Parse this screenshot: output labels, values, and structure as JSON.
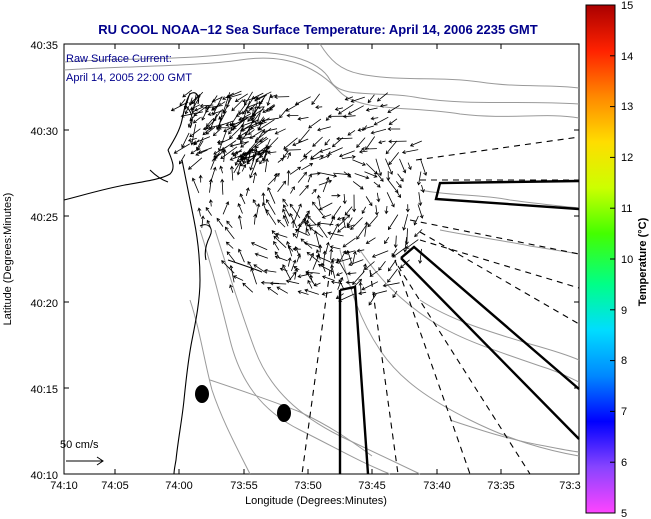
{
  "title": "RU COOL  NOAA−12  Sea Surface Temperature:  April 14, 2006 2235 GMT",
  "annotation": {
    "line1": "Raw Surface Current:",
    "line2": "April 14, 2005 22:00 GMT"
  },
  "scale_label": "50 cm/s",
  "axes": {
    "xlabel": "Longitude (Degrees:Minutes)",
    "ylabel": "Latitude (Degrees:Minutes)",
    "x_ticks": [
      "74:10",
      "74:05",
      "74:00",
      "73:55",
      "73:50",
      "73:45",
      "73:40",
      "73:35",
      "73:3"
    ],
    "y_ticks": [
      "40:35",
      "40:30",
      "40:25",
      "40:20",
      "40:15",
      "40:10"
    ]
  },
  "colorbar": {
    "label": "Temperature (°C)",
    "min": 5,
    "max": 15,
    "ticks": [
      "15",
      "14",
      "13",
      "12",
      "11",
      "10",
      "9",
      "8",
      "7",
      "6",
      "5"
    ],
    "colors": [
      "#ff44ff",
      "#8844ff",
      "#0000ff",
      "#0088ff",
      "#00ddff",
      "#00ff88",
      "#44ff00",
      "#ccff00",
      "#ffdd00",
      "#ff8800",
      "#ff2200",
      "#aa0000"
    ]
  },
  "colors": {
    "title": "#00008b",
    "annotation": "#00008b",
    "contour": "#9a9a9a"
  }
}
